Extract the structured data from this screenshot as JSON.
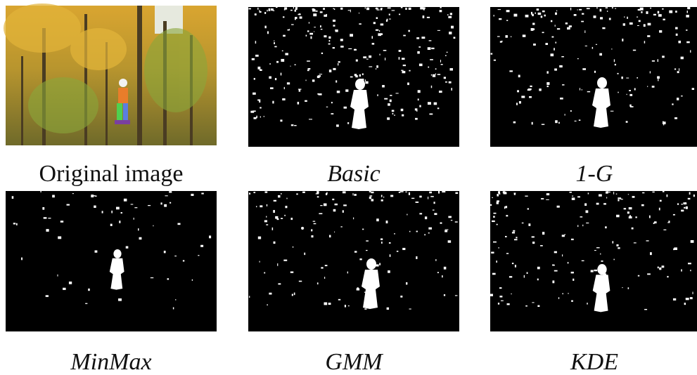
{
  "figure": {
    "panels": [
      {
        "caption": "Original image"
      },
      {
        "caption": "Basic"
      },
      {
        "caption": "1-G"
      },
      {
        "caption": "MinMax"
      },
      {
        "caption": "GMM"
      },
      {
        "caption": "KDE"
      }
    ]
  }
}
